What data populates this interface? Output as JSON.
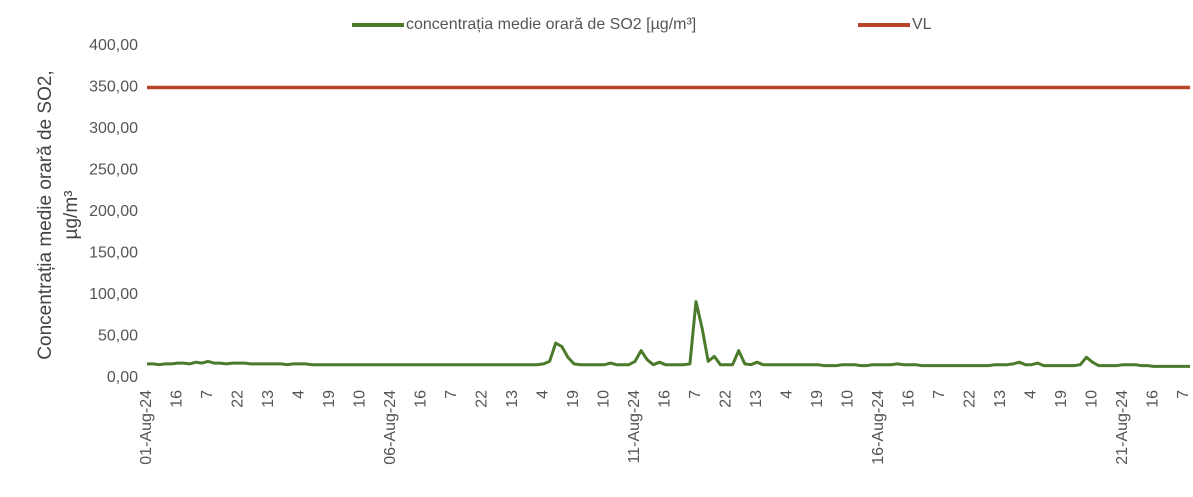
{
  "chart_data": {
    "type": "line",
    "y_label": [
      "Concentrația medie orară de SO2,",
      "µg/m³"
    ],
    "categories": [
      "01-Aug-24",
      null,
      null,
      null,
      null,
      "16",
      null,
      null,
      null,
      null,
      "7",
      null,
      null,
      null,
      null,
      "22",
      null,
      null,
      null,
      null,
      "13",
      null,
      null,
      null,
      null,
      "4",
      null,
      null,
      null,
      null,
      "19",
      null,
      null,
      null,
      null,
      "10",
      null,
      null,
      null,
      null,
      "06-Aug-24",
      null,
      null,
      null,
      null,
      "16",
      null,
      null,
      null,
      null,
      "7",
      null,
      null,
      null,
      null,
      "22",
      null,
      null,
      null,
      null,
      "13",
      null,
      null,
      null,
      null,
      "4",
      null,
      null,
      null,
      null,
      "19",
      null,
      null,
      null,
      null,
      "10",
      null,
      null,
      null,
      null,
      "11-Aug-24",
      null,
      null,
      null,
      null,
      "16",
      null,
      null,
      null,
      null,
      "7",
      null,
      null,
      null,
      null,
      "22",
      null,
      null,
      null,
      null,
      "13",
      null,
      null,
      null,
      null,
      "4",
      null,
      null,
      null,
      null,
      "19",
      null,
      null,
      null,
      null,
      "10",
      null,
      null,
      null,
      null,
      "16-Aug-24",
      null,
      null,
      null,
      null,
      "16",
      null,
      null,
      null,
      null,
      "7",
      null,
      null,
      null,
      null,
      "22",
      null,
      null,
      null,
      null,
      "13",
      null,
      null,
      null,
      null,
      "4",
      null,
      null,
      null,
      null,
      "19",
      null,
      null,
      null,
      null,
      "10",
      null,
      null,
      null,
      null,
      "21-Aug-24",
      null,
      null,
      null,
      null,
      "16",
      null,
      null,
      null,
      null,
      "7",
      null
    ],
    "series": [
      {
        "name": "concentrația medie orară de SO2 [µg/m³]",
        "color": "#4a7a2a",
        "values": [
          17,
          17,
          16,
          17,
          17,
          18,
          18,
          17,
          19,
          18,
          20,
          18,
          18,
          17,
          18,
          18,
          18,
          17,
          17,
          17,
          17,
          17,
          17,
          16,
          17,
          17,
          17,
          16,
          16,
          16,
          16,
          16,
          16,
          16,
          16,
          16,
          16,
          16,
          16,
          16,
          16,
          16,
          16,
          16,
          16,
          16,
          16,
          16,
          16,
          16,
          16,
          16,
          16,
          16,
          16,
          16,
          16,
          16,
          16,
          16,
          16,
          16,
          16,
          16,
          16,
          17,
          20,
          42,
          38,
          25,
          17,
          16,
          16,
          16,
          16,
          16,
          18,
          16,
          16,
          16,
          20,
          33,
          22,
          16,
          19,
          16,
          16,
          16,
          16,
          17,
          92,
          60,
          20,
          26,
          16,
          16,
          16,
          33,
          17,
          16,
          19,
          16,
          16,
          16,
          16,
          16,
          16,
          16,
          16,
          16,
          16,
          15,
          15,
          15,
          16,
          16,
          16,
          15,
          15,
          16,
          16,
          16,
          16,
          17,
          16,
          16,
          16,
          15,
          15,
          15,
          15,
          15,
          15,
          15,
          15,
          15,
          15,
          15,
          15,
          16,
          16,
          16,
          17,
          19,
          16,
          16,
          18,
          15,
          15,
          15,
          15,
          15,
          15,
          16,
          25,
          19,
          15,
          15,
          15,
          15,
          16,
          16,
          16,
          15,
          15,
          14,
          14,
          14,
          14,
          14,
          14,
          14
        ]
      },
      {
        "name": "VL",
        "color": "#b8442a",
        "values": [
          350,
          350,
          350,
          350,
          350,
          350,
          350,
          350,
          350,
          350,
          350,
          350,
          350,
          350,
          350,
          350,
          350,
          350,
          350,
          350,
          350,
          350,
          350,
          350,
          350,
          350,
          350,
          350,
          350,
          350,
          350,
          350,
          350,
          350,
          350,
          350,
          350,
          350,
          350,
          350,
          350,
          350,
          350,
          350,
          350,
          350,
          350,
          350,
          350,
          350,
          350,
          350,
          350,
          350,
          350,
          350,
          350,
          350,
          350,
          350,
          350,
          350,
          350,
          350,
          350,
          350,
          350,
          350,
          350,
          350,
          350,
          350,
          350,
          350,
          350,
          350,
          350,
          350,
          350,
          350,
          350,
          350,
          350,
          350,
          350,
          350,
          350,
          350,
          350,
          350,
          350,
          350,
          350,
          350,
          350,
          350,
          350,
          350,
          350,
          350,
          350,
          350,
          350,
          350,
          350,
          350,
          350,
          350,
          350,
          350,
          350,
          350,
          350,
          350,
          350,
          350,
          350,
          350,
          350,
          350,
          350,
          350,
          350,
          350,
          350,
          350,
          350,
          350,
          350,
          350,
          350,
          350,
          350,
          350,
          350,
          350,
          350,
          350,
          350,
          350,
          350,
          350,
          350,
          350,
          350,
          350,
          350,
          350,
          350,
          350,
          350,
          350,
          350,
          350,
          350,
          350,
          350,
          350,
          350,
          350,
          350,
          350,
          350,
          350,
          350,
          350,
          350,
          350,
          350,
          350,
          350,
          350
        ]
      }
    ],
    "ylim": [
      0,
      400
    ],
    "yticks": [
      {
        "value": 0,
        "label": "0,00"
      },
      {
        "value": 50,
        "label": "50,00"
      },
      {
        "value": 100,
        "label": "100,00"
      },
      {
        "value": 150,
        "label": "150,00"
      },
      {
        "value": 200,
        "label": "200,00"
      },
      {
        "value": 250,
        "label": "250,00"
      },
      {
        "value": 300,
        "label": "300,00"
      },
      {
        "value": 350,
        "label": "350,00"
      },
      {
        "value": 400,
        "label": "400,00"
      }
    ],
    "legend": "top",
    "grid": false
  }
}
